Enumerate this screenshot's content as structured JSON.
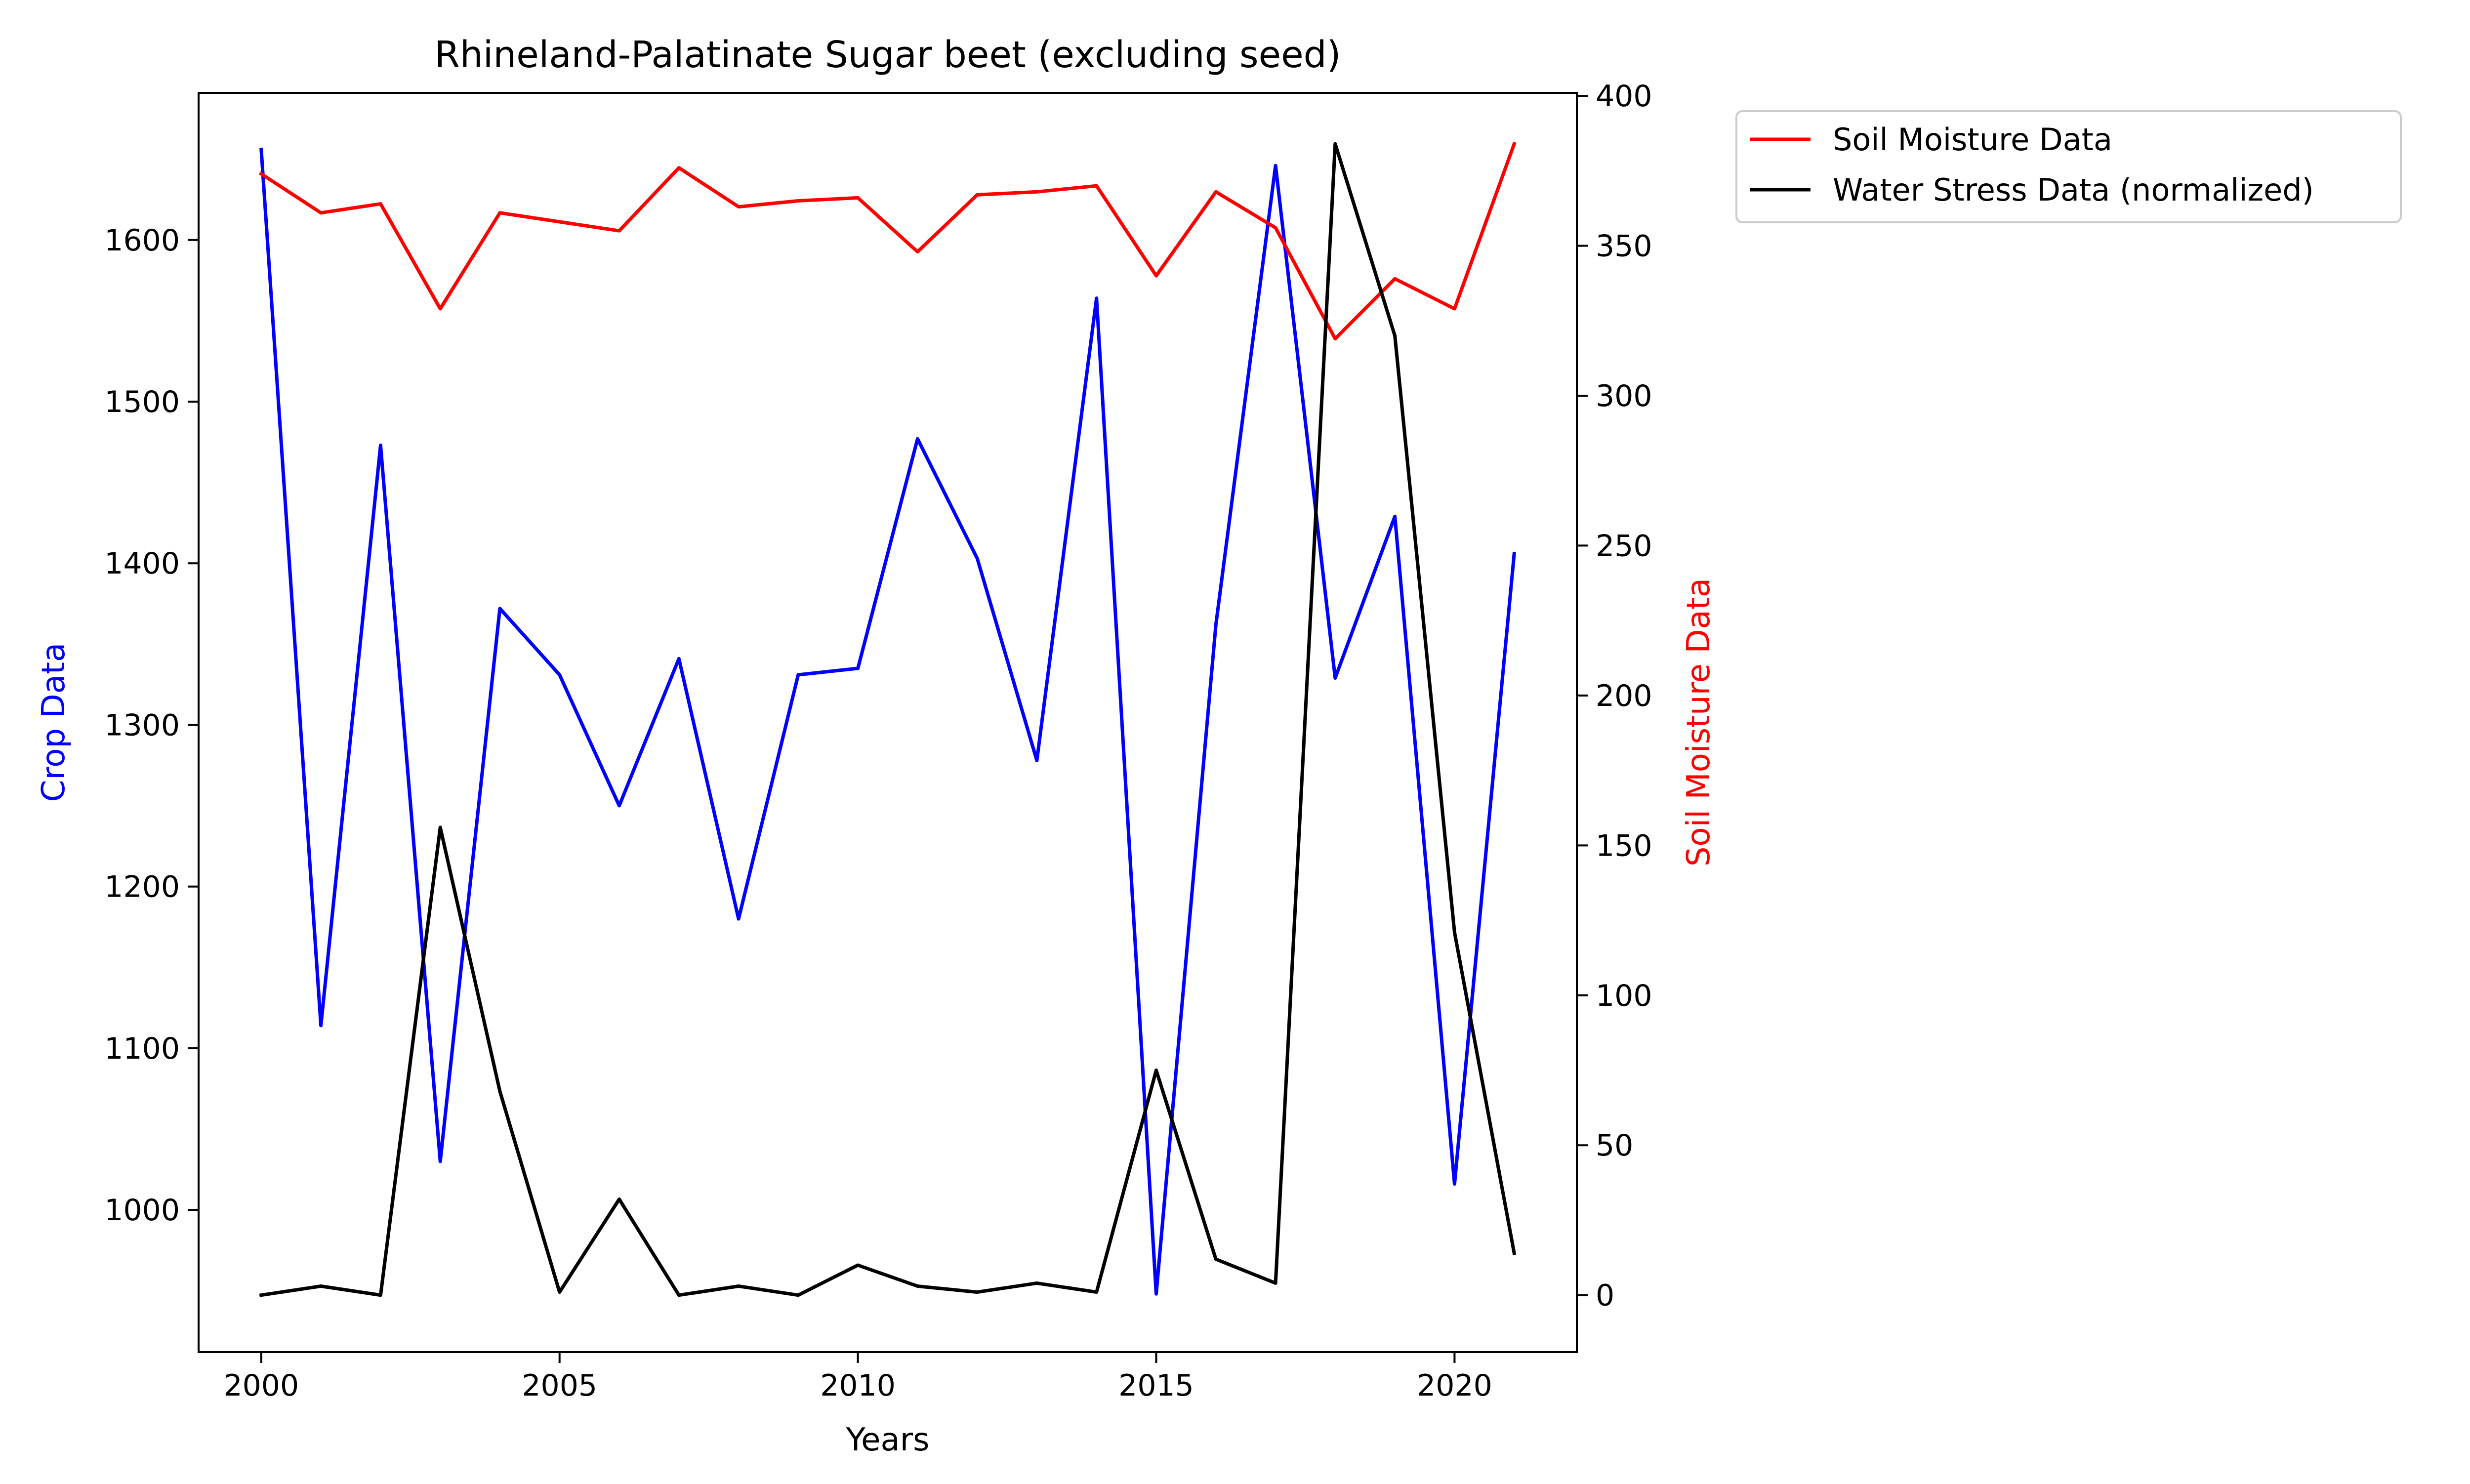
{
  "chart_data": {
    "type": "line",
    "title": "Rhineland-Palatinate Sugar beet (excluding seed)",
    "xlabel": "Years",
    "ylabel_left": "Crop Data",
    "ylabel_right": "Soil Moisture Data",
    "xlim": [
      1998.95,
      2022.05
    ],
    "ylim_left": [
      912,
      1691
    ],
    "ylim_right": [
      -19,
      401
    ],
    "xticks": [
      2000,
      2005,
      2010,
      2015,
      2020
    ],
    "yticks_left": [
      1000,
      1100,
      1200,
      1300,
      1400,
      1500,
      1600
    ],
    "yticks_right": [
      0,
      50,
      100,
      150,
      200,
      250,
      300,
      350,
      400
    ],
    "grid": false,
    "legend_position": "outside-top-right",
    "x": [
      2000,
      2001,
      2002,
      2003,
      2004,
      2005,
      2006,
      2007,
      2008,
      2009,
      2010,
      2011,
      2012,
      2013,
      2014,
      2015,
      2016,
      2017,
      2018,
      2019,
      2020,
      2021
    ],
    "series": [
      {
        "key": "crop",
        "axis": "left",
        "color": "#0000ff",
        "in_legend": false,
        "values": [
          1656,
          1114,
          1473,
          1030,
          1372,
          1331,
          1250,
          1341,
          1180,
          1331,
          1335,
          1477,
          1403,
          1278,
          1564,
          948,
          1362,
          1646,
          1329,
          1429,
          1016,
          1406
        ]
      },
      {
        "key": "soil",
        "axis": "right",
        "name": "Soil Moisture Data",
        "color": "#ff0000",
        "in_legend": true,
        "values": [
          374,
          361,
          364,
          329,
          361,
          358,
          355,
          376,
          363,
          365,
          366,
          348,
          367,
          368,
          370,
          340,
          368,
          356,
          319,
          339,
          329,
          384
        ]
      },
      {
        "key": "stress",
        "axis": "right",
        "name": "Water Stress Data (normalized)",
        "color": "#000000",
        "in_legend": true,
        "values": [
          0,
          3,
          0,
          156,
          68,
          1,
          32,
          0,
          3,
          0,
          10,
          3,
          1,
          4,
          1,
          75,
          12,
          4,
          384,
          320,
          121,
          14
        ]
      }
    ]
  }
}
